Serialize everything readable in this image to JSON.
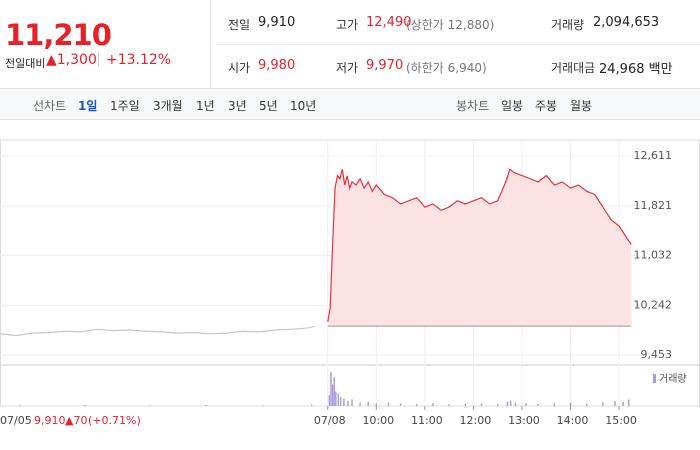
{
  "header": {
    "price": "11,210",
    "change_label": "전일대비",
    "change": "▲1,300",
    "change_pct": "+13.12%",
    "info": [
      [
        {
          "label": "전일",
          "value": "9,910"
        },
        {
          "label": "고가",
          "value": "12,490",
          "note": "(상한가 12,880)"
        },
        {
          "label": "거래량",
          "value": "2,094,653"
        }
      ],
      [
        {
          "label": "시가",
          "value": "9,980"
        },
        {
          "label": "저가",
          "value": "9,970",
          "note": "(하한가 6,940)"
        },
        {
          "label": "거래대금",
          "value": "24,968 백만"
        }
      ]
    ]
  },
  "tabs": {
    "line_label": "선차트",
    "line_items": [
      "1일",
      "1주일",
      "3개월",
      "1년",
      "3년",
      "5년",
      "10년"
    ],
    "active": "1일",
    "candle_label": "봉차트",
    "candle_items": [
      "일봉",
      "주봉",
      "월봉"
    ]
  },
  "prev_summary": {
    "date": "07/05",
    "close": "9,910",
    "change": "▲70",
    "change_pct": "(+0.71%)"
  },
  "chart_data": {
    "type": "line",
    "xlim": [
      -405,
      460
    ],
    "ylim": [
      9294,
      12865
    ],
    "yticks": [
      {
        "value": 12611,
        "label": "12,611"
      },
      {
        "value": 11821,
        "label": "11,821"
      },
      {
        "value": 11032,
        "label": "11,032"
      },
      {
        "value": 10242,
        "label": "10,242"
      },
      {
        "value": 9453,
        "label": "9,453"
      }
    ],
    "xticks": [
      {
        "value": 0,
        "label": "07/08"
      },
      {
        "value": 60,
        "label": "10:00"
      },
      {
        "value": 120,
        "label": "11:00"
      },
      {
        "value": 180,
        "label": "12:00"
      },
      {
        "value": 240,
        "label": "13:00"
      },
      {
        "value": 300,
        "label": "14:00"
      },
      {
        "value": 360,
        "label": "15:00"
      }
    ],
    "base": 9910,
    "grid": true,
    "series": [
      {
        "color": "#c8c8c8",
        "x": [
          -405,
          -385,
          -365,
          -345,
          -325,
          -305,
          -285,
          -265,
          -245,
          -225,
          -205,
          -185,
          -165,
          -145,
          -125,
          -105,
          -85,
          -65,
          -45,
          -25,
          -16
        ],
        "values": [
          9790,
          9760,
          9800,
          9810,
          9830,
          9820,
          9860,
          9840,
          9850,
          9830,
          9820,
          9800,
          9810,
          9790,
          9800,
          9830,
          9820,
          9850,
          9860,
          9880,
          9910
        ]
      },
      {
        "color": "#e8323c",
        "fill": "#fde3e3",
        "x": [
          0,
          3,
          6,
          9,
          12,
          15,
          18,
          21,
          24,
          27,
          30,
          35,
          40,
          45,
          50,
          55,
          60,
          70,
          80,
          90,
          100,
          110,
          120,
          130,
          140,
          150,
          160,
          170,
          180,
          190,
          200,
          210,
          220,
          225,
          230,
          240,
          250,
          260,
          270,
          280,
          290,
          300,
          310,
          320,
          330,
          340,
          350,
          360,
          370,
          375
        ],
        "values": [
          9980,
          10200,
          11200,
          12100,
          12300,
          12250,
          12400,
          12150,
          12300,
          12100,
          12200,
          12150,
          12250,
          12100,
          12200,
          12050,
          12150,
          12000,
          11950,
          11850,
          11900,
          11950,
          11800,
          11850,
          11750,
          11800,
          11900,
          11850,
          11900,
          11950,
          11850,
          11900,
          12200,
          12400,
          12350,
          12300,
          12250,
          12200,
          12300,
          12150,
          12200,
          12100,
          12150,
          12050,
          12000,
          11800,
          11600,
          11500,
          11300,
          11210
        ]
      }
    ],
    "volume": {
      "name": "거래량",
      "color": "#a99bd6",
      "ylim": [
        0,
        100
      ],
      "x": [
        -380,
        -300,
        -220,
        -150,
        -80,
        -20,
        2,
        4,
        6,
        8,
        10,
        13,
        16,
        20,
        25,
        30,
        40,
        50,
        60,
        75,
        90,
        110,
        130,
        150,
        170,
        190,
        210,
        222,
        226,
        232,
        245,
        260,
        280,
        300,
        320,
        340,
        355,
        365,
        372
      ],
      "values": [
        2,
        3,
        2,
        3,
        2,
        4,
        30,
        95,
        60,
        80,
        40,
        35,
        25,
        20,
        15,
        18,
        10,
        12,
        8,
        9,
        7,
        6,
        8,
        5,
        6,
        7,
        5,
        12,
        15,
        10,
        8,
        6,
        7,
        9,
        6,
        10,
        14,
        12,
        18
      ]
    }
  }
}
